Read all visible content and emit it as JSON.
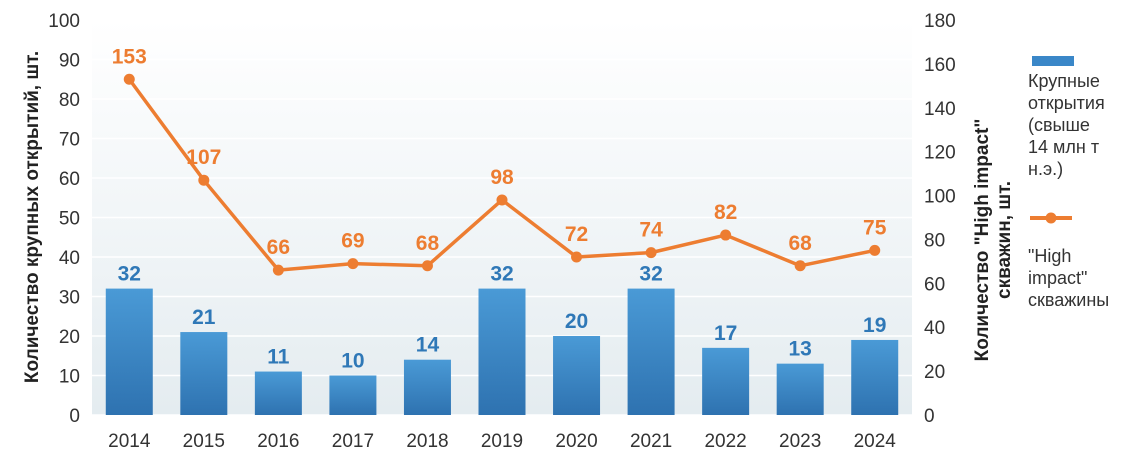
{
  "chart_data": {
    "type": "bar",
    "categories": [
      "2014",
      "2015",
      "2016",
      "2017",
      "2018",
      "2019",
      "2020",
      "2021",
      "2022",
      "2023",
      "2024"
    ],
    "series": [
      {
        "name": "Крупные открытия (свыше 14 млн т н.э.)",
        "type": "bar",
        "axis": "left",
        "values": [
          32,
          21,
          11,
          10,
          14,
          32,
          20,
          32,
          17,
          13,
          19
        ],
        "color": "#3a87c8"
      },
      {
        "name": "\"High impact\" скважины",
        "type": "line",
        "axis": "right",
        "values": [
          153,
          107,
          66,
          69,
          68,
          98,
          72,
          74,
          82,
          68,
          75
        ],
        "color": "#ed7d31"
      }
    ],
    "y_left": {
      "label": "Количество крупных открытий, шт.",
      "range": [
        0,
        100
      ],
      "ticks": [
        0,
        10,
        20,
        30,
        40,
        50,
        60,
        70,
        80,
        90,
        100
      ]
    },
    "y_right": {
      "label_line1": "Количество \"High impact\"",
      "label_line2": "скважин, шт.",
      "range": [
        0,
        180
      ],
      "ticks": [
        0,
        20,
        40,
        60,
        80,
        100,
        120,
        140,
        160,
        180
      ]
    },
    "legend": {
      "position": "right",
      "bar_lines": [
        "Крупные",
        "открытия",
        "(свыше",
        "14 млн т",
        "н.э.)"
      ],
      "line_lines": [
        "\"High",
        "impact\"",
        "скважины"
      ]
    },
    "grid": true,
    "plot_background": "#eaf0f3"
  }
}
